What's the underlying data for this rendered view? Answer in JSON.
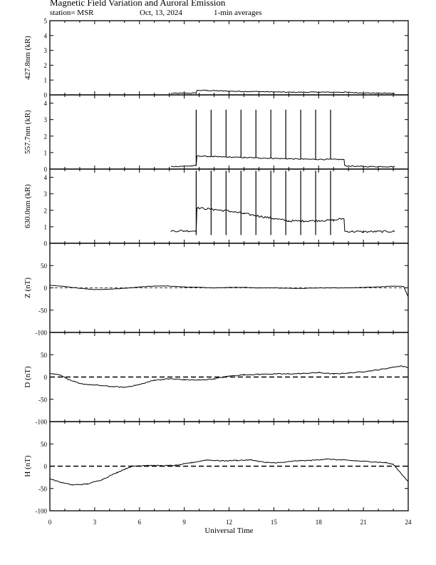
{
  "title": "Magnetic Field Variation and Auroral Emission",
  "station_label": "station= MSR",
  "date_label": "Oct, 13, 2024",
  "avg_label": "1-min averages",
  "chart_data": {
    "type": "line",
    "x_label": "Universal Time",
    "x_range": [
      0,
      24
    ],
    "x_ticks": [
      "0",
      "3",
      "6",
      "9",
      "12",
      "15",
      "18",
      "21",
      "24"
    ],
    "panels": [
      {
        "ylabel": "427.8nm (kR)",
        "ylim": [
          0,
          5
        ],
        "yticks": [
          "0",
          "1",
          "2",
          "3",
          "4",
          "5"
        ],
        "noise": 0.03,
        "series": [
          [
            8.1,
            0.1
          ],
          [
            9.8,
            0.12
          ],
          [
            9.85,
            0.3
          ],
          [
            10.5,
            0.3
          ],
          [
            12,
            0.25
          ],
          [
            14,
            0.22
          ],
          [
            16,
            0.18
          ],
          [
            18,
            0.18
          ],
          [
            19.7,
            0.18
          ],
          [
            21,
            0.13
          ],
          [
            23.1,
            0.1
          ]
        ]
      },
      {
        "ylabel": "557.7nm (kR)",
        "ylim": [
          0,
          4.5
        ],
        "yticks": [
          "0",
          "1",
          "2",
          "3",
          "4"
        ],
        "noise": 0.03,
        "series": [
          [
            8.1,
            0.15
          ],
          [
            9.8,
            0.2
          ],
          [
            9.85,
            0.8
          ],
          [
            11,
            0.75
          ],
          [
            13,
            0.7
          ],
          [
            15,
            0.65
          ],
          [
            17,
            0.6
          ],
          [
            19.7,
            0.58
          ],
          [
            19.75,
            0.2
          ],
          [
            21,
            0.15
          ],
          [
            23.1,
            0.15
          ]
        ],
        "spikes": {
          "times": [
            9.8,
            10.8,
            11.8,
            12.8,
            13.8,
            14.8,
            15.8,
            16.8,
            17.8,
            18.8
          ],
          "top": 3.6
        }
      },
      {
        "ylabel": "630.0nm (kR)",
        "ylim": [
          0,
          4.5
        ],
        "yticks": [
          "0",
          "1",
          "2",
          "3",
          "4"
        ],
        "noise": 0.06,
        "series": [
          [
            8.1,
            0.75
          ],
          [
            9.8,
            0.75
          ],
          [
            9.85,
            2.15
          ],
          [
            11,
            2.05
          ],
          [
            12,
            1.95
          ],
          [
            13,
            1.8
          ],
          [
            14,
            1.65
          ],
          [
            15,
            1.5
          ],
          [
            16,
            1.35
          ],
          [
            17,
            1.35
          ],
          [
            19,
            1.4
          ],
          [
            19.7,
            1.5
          ],
          [
            19.75,
            0.72
          ],
          [
            21,
            0.7
          ],
          [
            23.1,
            0.72
          ]
        ],
        "spikes": {
          "times": [
            9.8,
            10.8,
            11.8,
            12.8,
            13.8,
            14.8,
            15.8,
            16.8,
            17.8,
            18.8
          ],
          "top": 4.4,
          "bottom": 0.5
        }
      },
      {
        "ylabel": "Z (nT)",
        "ylim": [
          -100,
          100
        ],
        "yticks": [
          "-100",
          "-50",
          "0",
          "50",
          ""
        ],
        "baseline_dash": "small",
        "noise": 0.4,
        "series": [
          [
            0,
            6
          ],
          [
            1,
            3
          ],
          [
            2,
            -1
          ],
          [
            3,
            -4
          ],
          [
            4,
            -3
          ],
          [
            5,
            -1
          ],
          [
            6,
            2
          ],
          [
            7,
            4
          ],
          [
            8,
            4
          ],
          [
            9,
            2
          ],
          [
            10,
            1
          ],
          [
            11,
            0
          ],
          [
            12,
            1
          ],
          [
            13,
            1
          ],
          [
            14,
            0
          ],
          [
            15,
            0
          ],
          [
            16,
            -1
          ],
          [
            17,
            -1
          ],
          [
            18,
            0
          ],
          [
            19,
            0
          ],
          [
            20,
            0
          ],
          [
            21,
            1
          ],
          [
            22,
            2
          ],
          [
            23,
            4
          ],
          [
            23.7,
            3
          ],
          [
            24,
            -20
          ]
        ]
      },
      {
        "ylabel": "D (nT)",
        "ylim": [
          -100,
          100
        ],
        "yticks": [
          "-100",
          "-50",
          "0",
          "50",
          ""
        ],
        "baseline_dash": "large",
        "noise": 1.0,
        "series": [
          [
            0,
            8
          ],
          [
            0.7,
            5
          ],
          [
            1.2,
            -5
          ],
          [
            2,
            -15
          ],
          [
            3,
            -18
          ],
          [
            4,
            -21
          ],
          [
            5,
            -23
          ],
          [
            6,
            -17
          ],
          [
            7,
            -7
          ],
          [
            8,
            -4
          ],
          [
            9,
            -6
          ],
          [
            10,
            -7
          ],
          [
            11,
            -4
          ],
          [
            12,
            2
          ],
          [
            13,
            5
          ],
          [
            14,
            6
          ],
          [
            15,
            7
          ],
          [
            16,
            7
          ],
          [
            17,
            8
          ],
          [
            18,
            10
          ],
          [
            19,
            7
          ],
          [
            20,
            9
          ],
          [
            21,
            12
          ],
          [
            22,
            16
          ],
          [
            23,
            22
          ],
          [
            23.5,
            25
          ],
          [
            24,
            21
          ]
        ]
      },
      {
        "ylabel": "H (nT)",
        "ylim": [
          -100,
          100
        ],
        "yticks": [
          "-100",
          "-50",
          "0",
          "50",
          ""
        ],
        "baseline_dash": "large",
        "noise": 1.0,
        "series": [
          [
            0,
            -28
          ],
          [
            0.7,
            -36
          ],
          [
            1.5,
            -42
          ],
          [
            2.5,
            -40
          ],
          [
            3.5,
            -30
          ],
          [
            4.5,
            -14
          ],
          [
            5.5,
            0
          ],
          [
            6.5,
            2
          ],
          [
            7.5,
            1
          ],
          [
            8.5,
            2
          ],
          [
            9.5,
            8
          ],
          [
            10.5,
            14
          ],
          [
            11.5,
            12
          ],
          [
            12.5,
            13
          ],
          [
            13.5,
            14
          ],
          [
            14.5,
            8
          ],
          [
            15.5,
            8
          ],
          [
            16.5,
            12
          ],
          [
            17.5,
            13
          ],
          [
            18.5,
            16
          ],
          [
            19.5,
            14
          ],
          [
            20.5,
            12
          ],
          [
            21.5,
            10
          ],
          [
            22.5,
            8
          ],
          [
            23,
            4
          ],
          [
            23.5,
            -15
          ],
          [
            24,
            -35
          ]
        ]
      }
    ]
  }
}
